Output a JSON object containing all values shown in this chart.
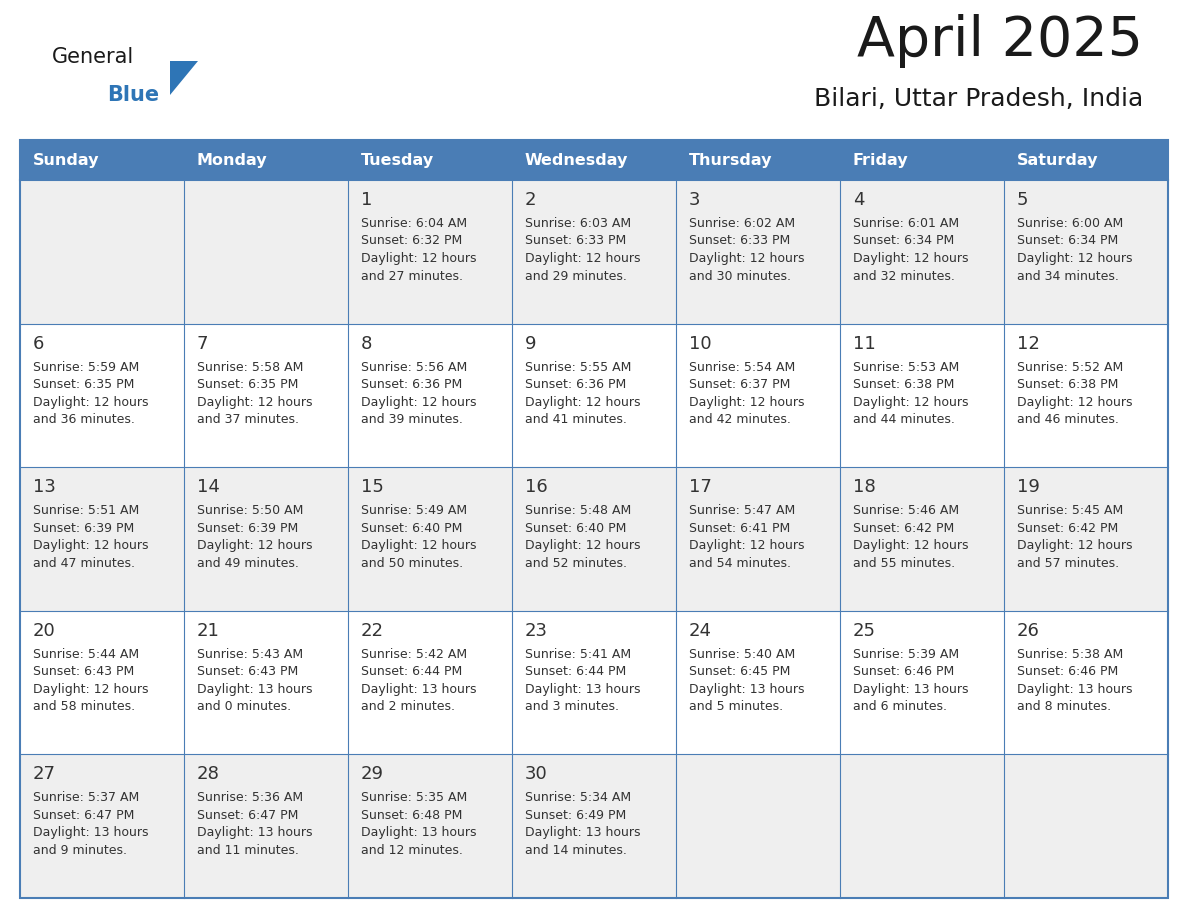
{
  "title": "April 2025",
  "subtitle": "Bilari, Uttar Pradesh, India",
  "days_of_week": [
    "Sunday",
    "Monday",
    "Tuesday",
    "Wednesday",
    "Thursday",
    "Friday",
    "Saturday"
  ],
  "header_bg": "#4a7db5",
  "header_text": "#ffffff",
  "row_bg_odd": "#efefef",
  "row_bg_even": "#ffffff",
  "border_color": "#4a7db5",
  "text_color": "#333333",
  "title_color": "#1a1a1a",
  "logo_black": "#1a1a1a",
  "logo_blue": "#2e75b6",
  "calendar": [
    [
      null,
      null,
      {
        "day": "1",
        "sunrise": "6:04 AM",
        "sunset": "6:32 PM",
        "dl1": "Daylight: 12 hours",
        "dl2": "and 27 minutes."
      },
      {
        "day": "2",
        "sunrise": "6:03 AM",
        "sunset": "6:33 PM",
        "dl1": "Daylight: 12 hours",
        "dl2": "and 29 minutes."
      },
      {
        "day": "3",
        "sunrise": "6:02 AM",
        "sunset": "6:33 PM",
        "dl1": "Daylight: 12 hours",
        "dl2": "and 30 minutes."
      },
      {
        "day": "4",
        "sunrise": "6:01 AM",
        "sunset": "6:34 PM",
        "dl1": "Daylight: 12 hours",
        "dl2": "and 32 minutes."
      },
      {
        "day": "5",
        "sunrise": "6:00 AM",
        "sunset": "6:34 PM",
        "dl1": "Daylight: 12 hours",
        "dl2": "and 34 minutes."
      }
    ],
    [
      {
        "day": "6",
        "sunrise": "5:59 AM",
        "sunset": "6:35 PM",
        "dl1": "Daylight: 12 hours",
        "dl2": "and 36 minutes."
      },
      {
        "day": "7",
        "sunrise": "5:58 AM",
        "sunset": "6:35 PM",
        "dl1": "Daylight: 12 hours",
        "dl2": "and 37 minutes."
      },
      {
        "day": "8",
        "sunrise": "5:56 AM",
        "sunset": "6:36 PM",
        "dl1": "Daylight: 12 hours",
        "dl2": "and 39 minutes."
      },
      {
        "day": "9",
        "sunrise": "5:55 AM",
        "sunset": "6:36 PM",
        "dl1": "Daylight: 12 hours",
        "dl2": "and 41 minutes."
      },
      {
        "day": "10",
        "sunrise": "5:54 AM",
        "sunset": "6:37 PM",
        "dl1": "Daylight: 12 hours",
        "dl2": "and 42 minutes."
      },
      {
        "day": "11",
        "sunrise": "5:53 AM",
        "sunset": "6:38 PM",
        "dl1": "Daylight: 12 hours",
        "dl2": "and 44 minutes."
      },
      {
        "day": "12",
        "sunrise": "5:52 AM",
        "sunset": "6:38 PM",
        "dl1": "Daylight: 12 hours",
        "dl2": "and 46 minutes."
      }
    ],
    [
      {
        "day": "13",
        "sunrise": "5:51 AM",
        "sunset": "6:39 PM",
        "dl1": "Daylight: 12 hours",
        "dl2": "and 47 minutes."
      },
      {
        "day": "14",
        "sunrise": "5:50 AM",
        "sunset": "6:39 PM",
        "dl1": "Daylight: 12 hours",
        "dl2": "and 49 minutes."
      },
      {
        "day": "15",
        "sunrise": "5:49 AM",
        "sunset": "6:40 PM",
        "dl1": "Daylight: 12 hours",
        "dl2": "and 50 minutes."
      },
      {
        "day": "16",
        "sunrise": "5:48 AM",
        "sunset": "6:40 PM",
        "dl1": "Daylight: 12 hours",
        "dl2": "and 52 minutes."
      },
      {
        "day": "17",
        "sunrise": "5:47 AM",
        "sunset": "6:41 PM",
        "dl1": "Daylight: 12 hours",
        "dl2": "and 54 minutes."
      },
      {
        "day": "18",
        "sunrise": "5:46 AM",
        "sunset": "6:42 PM",
        "dl1": "Daylight: 12 hours",
        "dl2": "and 55 minutes."
      },
      {
        "day": "19",
        "sunrise": "5:45 AM",
        "sunset": "6:42 PM",
        "dl1": "Daylight: 12 hours",
        "dl2": "and 57 minutes."
      }
    ],
    [
      {
        "day": "20",
        "sunrise": "5:44 AM",
        "sunset": "6:43 PM",
        "dl1": "Daylight: 12 hours",
        "dl2": "and 58 minutes."
      },
      {
        "day": "21",
        "sunrise": "5:43 AM",
        "sunset": "6:43 PM",
        "dl1": "Daylight: 13 hours",
        "dl2": "and 0 minutes."
      },
      {
        "day": "22",
        "sunrise": "5:42 AM",
        "sunset": "6:44 PM",
        "dl1": "Daylight: 13 hours",
        "dl2": "and 2 minutes."
      },
      {
        "day": "23",
        "sunrise": "5:41 AM",
        "sunset": "6:44 PM",
        "dl1": "Daylight: 13 hours",
        "dl2": "and 3 minutes."
      },
      {
        "day": "24",
        "sunrise": "5:40 AM",
        "sunset": "6:45 PM",
        "dl1": "Daylight: 13 hours",
        "dl2": "and 5 minutes."
      },
      {
        "day": "25",
        "sunrise": "5:39 AM",
        "sunset": "6:46 PM",
        "dl1": "Daylight: 13 hours",
        "dl2": "and 6 minutes."
      },
      {
        "day": "26",
        "sunrise": "5:38 AM",
        "sunset": "6:46 PM",
        "dl1": "Daylight: 13 hours",
        "dl2": "and 8 minutes."
      }
    ],
    [
      {
        "day": "27",
        "sunrise": "5:37 AM",
        "sunset": "6:47 PM",
        "dl1": "Daylight: 13 hours",
        "dl2": "and 9 minutes."
      },
      {
        "day": "28",
        "sunrise": "5:36 AM",
        "sunset": "6:47 PM",
        "dl1": "Daylight: 13 hours",
        "dl2": "and 11 minutes."
      },
      {
        "day": "29",
        "sunrise": "5:35 AM",
        "sunset": "6:48 PM",
        "dl1": "Daylight: 13 hours",
        "dl2": "and 12 minutes."
      },
      {
        "day": "30",
        "sunrise": "5:34 AM",
        "sunset": "6:49 PM",
        "dl1": "Daylight: 13 hours",
        "dl2": "and 14 minutes."
      },
      null,
      null,
      null
    ]
  ]
}
